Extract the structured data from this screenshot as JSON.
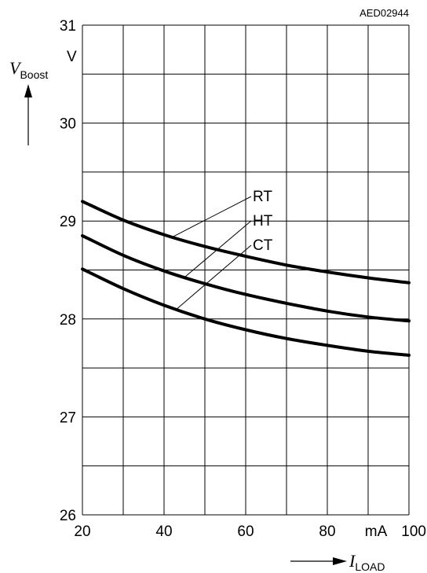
{
  "chart_data": {
    "type": "line",
    "figure_id": "AED02944",
    "title": "",
    "xlabel": {
      "symbol": "I",
      "subscript": "LOAD"
    },
    "ylabel": {
      "symbol": "V",
      "subscript": "Boost",
      "unit": "V"
    },
    "x_unit": "mA",
    "xlim": [
      20,
      100
    ],
    "ylim": [
      26,
      31
    ],
    "x_ticks": [
      20,
      40,
      60,
      80,
      100
    ],
    "x_tick_labels": [
      "20",
      "40",
      "60",
      "80",
      "100"
    ],
    "y_ticks": [
      26,
      27,
      28,
      29,
      30,
      31
    ],
    "y_tick_labels": [
      "26",
      "27",
      "28",
      "29",
      "30",
      "31"
    ],
    "grid": true,
    "x_grid_step": 10,
    "y_grid_step": 0.5,
    "series": [
      {
        "name": "RT",
        "x": [
          20,
          30,
          40,
          50,
          60,
          70,
          80,
          90,
          100
        ],
        "y": [
          29.2,
          29.01,
          28.86,
          28.74,
          28.64,
          28.55,
          28.48,
          28.42,
          28.37
        ]
      },
      {
        "name": "HT",
        "x": [
          20,
          30,
          40,
          50,
          60,
          70,
          80,
          90,
          100
        ],
        "y": [
          28.85,
          28.65,
          28.49,
          28.36,
          28.25,
          28.16,
          28.08,
          28.02,
          27.98
        ]
      },
      {
        "name": "CT",
        "x": [
          20,
          30,
          40,
          50,
          60,
          70,
          80,
          90,
          100
        ],
        "y": [
          28.51,
          28.31,
          28.14,
          28.0,
          27.89,
          27.8,
          27.73,
          27.67,
          27.63
        ]
      }
    ],
    "leader_anchor_x": [
      42,
      45,
      43
    ]
  }
}
